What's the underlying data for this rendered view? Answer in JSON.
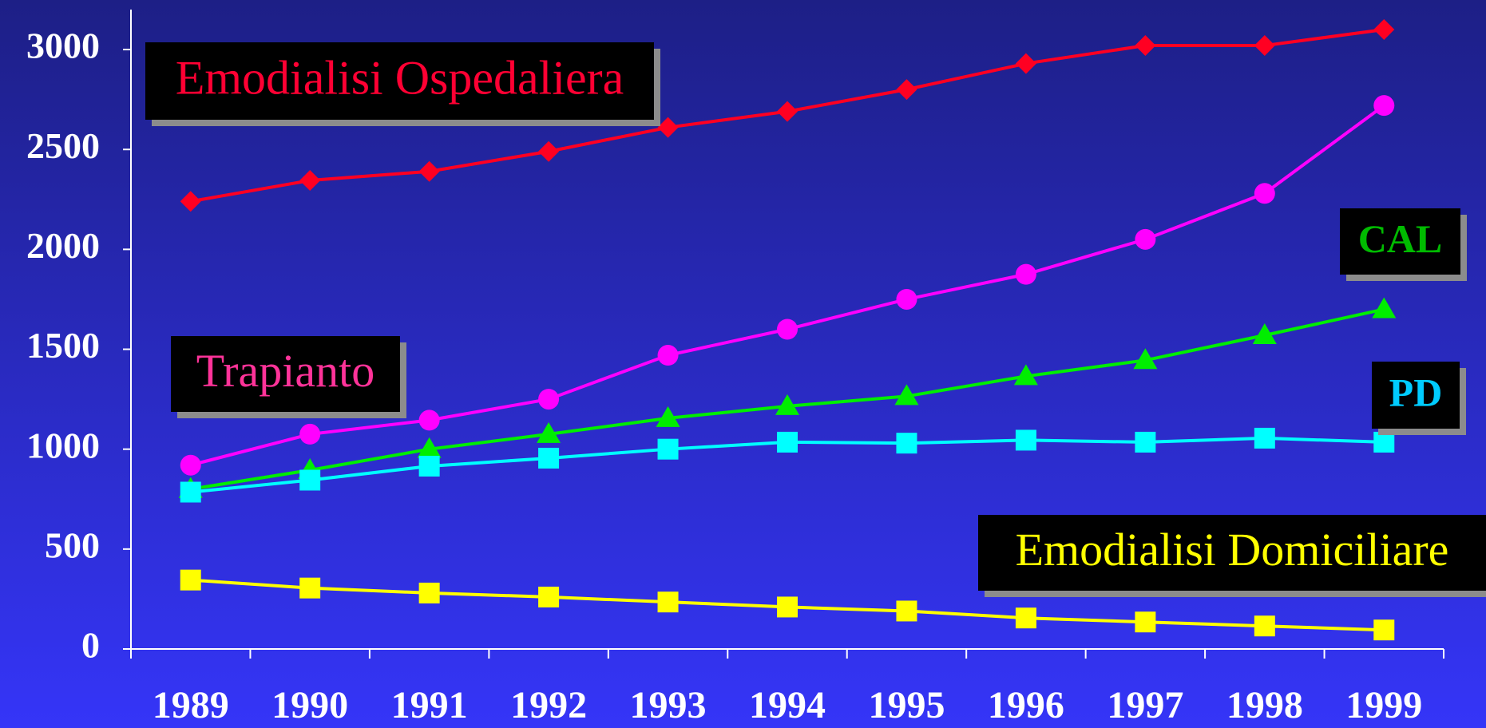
{
  "chart_data": {
    "type": "line",
    "categories": [
      "1989",
      "1990",
      "1991",
      "1992",
      "1993",
      "1994",
      "1995",
      "1996",
      "1997",
      "1998",
      "1999"
    ],
    "series": [
      {
        "name": "Emodialisi Ospedaliera",
        "color": "#ff0022",
        "marker": "diamond",
        "values": [
          2240,
          2345,
          2390,
          2490,
          2610,
          2690,
          2800,
          2930,
          3020,
          3020,
          3100
        ]
      },
      {
        "name": "Trapianto",
        "color": "#ff00ff",
        "marker": "circle",
        "values": [
          920,
          1075,
          1145,
          1250,
          1470,
          1600,
          1750,
          1875,
          2050,
          2280,
          2720
        ]
      },
      {
        "name": "CAL",
        "color": "#00ee00",
        "marker": "triangle",
        "values": [
          800,
          895,
          1000,
          1075,
          1155,
          1215,
          1265,
          1365,
          1445,
          1570,
          1700
        ]
      },
      {
        "name": "PD",
        "color": "#00ffff",
        "marker": "square",
        "values": [
          785,
          845,
          915,
          955,
          1000,
          1035,
          1030,
          1045,
          1035,
          1055,
          1035
        ]
      },
      {
        "name": "Emodialisi Domiciliare",
        "color": "#ffff00",
        "marker": "square",
        "values": [
          345,
          305,
          280,
          260,
          235,
          210,
          190,
          155,
          135,
          115,
          95
        ]
      }
    ],
    "ylim": [
      0,
      3200
    ],
    "yticks": [
      0,
      500,
      1000,
      1500,
      2000,
      2500,
      3000
    ]
  }
}
